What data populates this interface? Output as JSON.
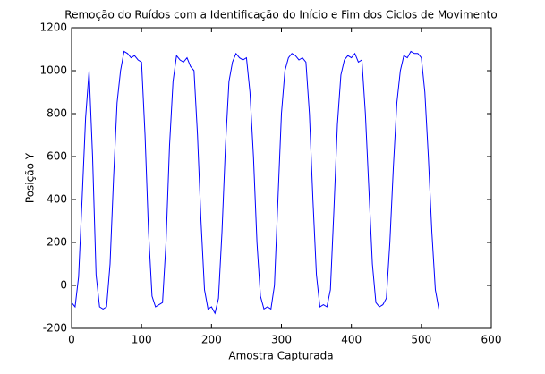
{
  "chart_data": {
    "type": "line",
    "title": "Remoção do Ruídos com a Identificação do Início e Fim dos Ciclos de Movimento",
    "x_label": "Amostra Capturada",
    "y_label": "Posição Y",
    "x": [
      0,
      5,
      10,
      15,
      20,
      25,
      30,
      35,
      40,
      45,
      50,
      55,
      60,
      65,
      70,
      75,
      80,
      85,
      90,
      95,
      100,
      105,
      110,
      115,
      120,
      125,
      130,
      135,
      140,
      145,
      150,
      155,
      160,
      165,
      170,
      175,
      180,
      185,
      190,
      195,
      200,
      205,
      210,
      215,
      220,
      225,
      230,
      235,
      240,
      245,
      250,
      255,
      260,
      265,
      270,
      275,
      280,
      285,
      290,
      295,
      300,
      305,
      310,
      315,
      320,
      325,
      330,
      335,
      340,
      345,
      350,
      355,
      360,
      365,
      370,
      375,
      380,
      385,
      390,
      395,
      400,
      405,
      410,
      415,
      420,
      425,
      430,
      435,
      440,
      445,
      450,
      455,
      460,
      465,
      470,
      475,
      480,
      485,
      490,
      495,
      500,
      505,
      510,
      515,
      520,
      525
    ],
    "series": [
      {
        "color": "#0000ff",
        "values": [
          -80,
          -100,
          40,
          400,
          780,
          1000,
          600,
          50,
          -100,
          -110,
          -100,
          100,
          500,
          850,
          1000,
          1090,
          1080,
          1060,
          1070,
          1050,
          1040,
          700,
          250,
          -50,
          -100,
          -90,
          -80,
          200,
          650,
          950,
          1070,
          1050,
          1040,
          1060,
          1020,
          1000,
          700,
          300,
          -20,
          -110,
          -100,
          -130,
          -60,
          250,
          650,
          950,
          1040,
          1080,
          1060,
          1050,
          1060,
          900,
          600,
          200,
          -50,
          -110,
          -100,
          -110,
          0,
          400,
          800,
          1000,
          1060,
          1080,
          1070,
          1050,
          1060,
          1040,
          800,
          400,
          50,
          -100,
          -90,
          -100,
          -20,
          350,
          750,
          980,
          1050,
          1070,
          1060,
          1080,
          1040,
          1050,
          800,
          450,
          100,
          -80,
          -100,
          -90,
          -60,
          200,
          550,
          850,
          1000,
          1070,
          1060,
          1090,
          1080,
          1080,
          1060,
          900,
          600,
          250,
          -20,
          -110
        ]
      }
    ],
    "xlim": [
      0,
      600
    ],
    "xticks": [
      0,
      100,
      200,
      300,
      400,
      500,
      600
    ],
    "ylim": [
      -200,
      1200
    ],
    "yticks": [
      -200,
      0,
      200,
      400,
      600,
      800,
      1000,
      1200
    ]
  }
}
